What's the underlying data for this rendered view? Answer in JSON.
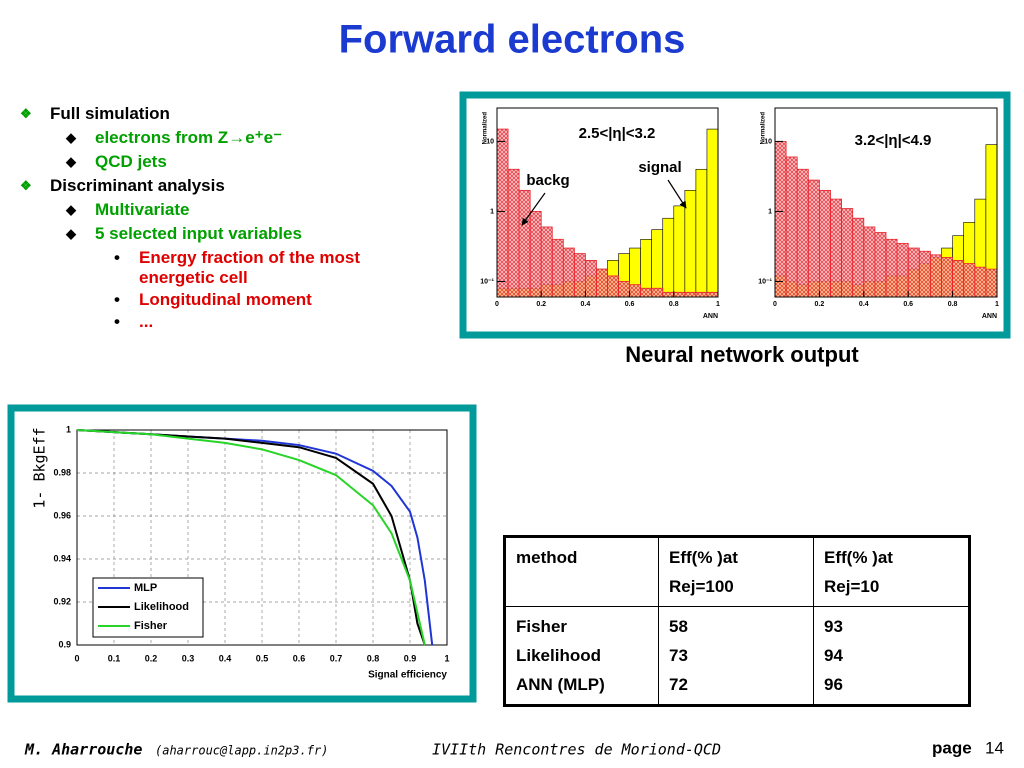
{
  "header": {
    "title": "Forward electrons"
  },
  "outline": [
    {
      "text": "Full simulation",
      "items": [
        {
          "text": "electrons from Z→e⁺e⁻"
        },
        {
          "text": "QCD jets"
        }
      ]
    },
    {
      "text": "Discriminant analysis",
      "items": [
        {
          "text": "Multivariate"
        },
        {
          "text": "5 selected input variables",
          "items": [
            {
              "text": "Energy fraction of the most energetic cell"
            },
            {
              "text": "Longitudinal moment"
            },
            {
              "text": "..."
            }
          ]
        }
      ]
    }
  ],
  "caption": "Neural network output",
  "chart_data": [
    {
      "type": "histogram",
      "xlabel": "ANN",
      "ylabel": "Normalized",
      "log_y": true,
      "annotations": [
        "2.5<|η|<3.2",
        "signal",
        "backg"
      ],
      "bins": [
        0,
        0.05,
        0.1,
        0.15,
        0.2,
        0.25,
        0.3,
        0.35,
        0.4,
        0.45,
        0.5,
        0.55,
        0.6,
        0.65,
        0.7,
        0.75,
        0.8,
        0.85,
        0.9,
        0.95,
        1
      ],
      "series": [
        {
          "name": "signal",
          "color": "#ffff00",
          "values": [
            0.08,
            0.08,
            0.08,
            0.08,
            0.09,
            0.09,
            0.1,
            0.1,
            0.12,
            0.15,
            0.2,
            0.25,
            0.3,
            0.4,
            0.55,
            0.8,
            1.2,
            2,
            4,
            15
          ]
        },
        {
          "name": "backg",
          "color": "#e8202a",
          "values": [
            15,
            4,
            2,
            1,
            0.6,
            0.4,
            0.3,
            0.25,
            0.2,
            0.15,
            0.12,
            0.1,
            0.09,
            0.08,
            0.08,
            0.07,
            0.07,
            0.07,
            0.07,
            0.07
          ]
        }
      ],
      "xlim": [
        0,
        1
      ],
      "xticks": [
        0,
        0.2,
        0.4,
        0.6,
        0.8,
        1
      ],
      "ylim": [
        0.06,
        30
      ],
      "yticks": [
        {
          "value": 0.1,
          "label": "10⁻¹"
        },
        1,
        10
      ]
    },
    {
      "type": "histogram",
      "xlabel": "ANN",
      "ylabel": "Normalized",
      "log_y": true,
      "annotations": [
        "3.2<|η|<4.9"
      ],
      "bins": [
        0,
        0.05,
        0.1,
        0.15,
        0.2,
        0.25,
        0.3,
        0.35,
        0.4,
        0.45,
        0.5,
        0.55,
        0.6,
        0.65,
        0.7,
        0.75,
        0.8,
        0.85,
        0.9,
        0.95,
        1
      ],
      "series": [
        {
          "name": "signal",
          "color": "#ffff00",
          "values": [
            0.12,
            0.1,
            0.09,
            0.1,
            0.1,
            0.1,
            0.1,
            0.09,
            0.1,
            0.1,
            0.12,
            0.12,
            0.15,
            0.18,
            0.22,
            0.3,
            0.45,
            0.7,
            1.5,
            9
          ]
        },
        {
          "name": "backg",
          "color": "#e8202a",
          "values": [
            10,
            6,
            4,
            2.8,
            2,
            1.5,
            1.1,
            0.8,
            0.6,
            0.5,
            0.4,
            0.35,
            0.3,
            0.27,
            0.24,
            0.22,
            0.2,
            0.18,
            0.16,
            0.15
          ]
        }
      ],
      "xlim": [
        0,
        1
      ],
      "xticks": [
        0,
        0.2,
        0.4,
        0.6,
        0.8,
        1
      ],
      "ylim": [
        0.06,
        30
      ],
      "yticks": [
        {
          "value": 0.1,
          "label": "10⁻¹"
        },
        1,
        10
      ]
    },
    {
      "type": "line",
      "xlabel": "Signal efficiency",
      "ylabel": "1- BkgEff",
      "grid": true,
      "legend": "lower left",
      "x": [
        0,
        0.1,
        0.2,
        0.3,
        0.4,
        0.5,
        0.6,
        0.7,
        0.8,
        0.85,
        0.9,
        0.92,
        0.94,
        0.95,
        0.96
      ],
      "series": [
        {
          "name": "MLP",
          "color": "#1f35d6",
          "values": [
            1,
            0.999,
            0.998,
            0.997,
            0.996,
            0.995,
            0.993,
            0.989,
            0.981,
            0.974,
            0.962,
            0.95,
            0.93,
            0.915,
            0.9
          ]
        },
        {
          "name": "Likelihood",
          "color": "#000000",
          "values": [
            1,
            0.999,
            0.998,
            0.997,
            0.996,
            0.994,
            0.992,
            0.987,
            0.975,
            0.96,
            0.93,
            0.91,
            0.9,
            null,
            null
          ]
        },
        {
          "name": "Fisher",
          "color": "#27d427",
          "values": [
            1,
            0.999,
            0.998,
            0.996,
            0.994,
            0.991,
            0.986,
            0.979,
            0.965,
            0.952,
            0.93,
            0.915,
            0.9,
            null,
            null
          ]
        }
      ],
      "xlim": [
        0,
        1
      ],
      "xticks": [
        0,
        0.1,
        0.2,
        0.3,
        0.4,
        0.5,
        0.6,
        0.7,
        0.8,
        0.9,
        1
      ],
      "ylim": [
        0.9,
        1
      ],
      "yticks": [
        0.9,
        0.92,
        0.94,
        0.96,
        0.98,
        1
      ]
    }
  ],
  "table": {
    "header": [
      [
        "method"
      ],
      [
        "Eff(% )at",
        "Rej=100"
      ],
      [
        "Eff(% )at",
        "Rej=10"
      ]
    ],
    "rows": [
      [
        "Fisher",
        58,
        93
      ],
      [
        "Likelihood",
        73,
        94
      ],
      [
        "ANN (MLP)",
        72,
        96
      ]
    ]
  },
  "footer": {
    "author": "M. Aharrouche",
    "email": "(aharrouc@lapp.in2p3.fr)",
    "event": "IVIIth Rencontres de Moriond-QCD",
    "page_label": "page",
    "page_number": 14
  }
}
